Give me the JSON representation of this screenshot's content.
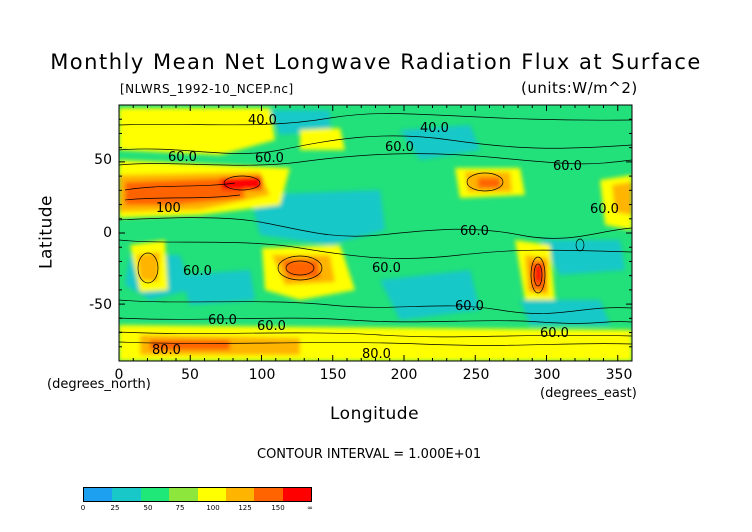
{
  "chart_data": {
    "type": "heatmap",
    "title": "Monthly Mean Net Longwave Radiation Flux at Surface",
    "subtitle": "[NLWRS_1992-10_NCEP.nc]",
    "units": "(units:W/m^2)",
    "xlabel": "Longitude",
    "ylabel": "Latitude",
    "x_unit_label": "(degrees_east)",
    "y_unit_label": "(degrees_north)",
    "xlim": [
      0,
      360
    ],
    "ylim": [
      -90,
      90
    ],
    "x_ticks": [
      "0",
      "50",
      "100",
      "150",
      "200",
      "250",
      "300",
      "350"
    ],
    "y_ticks": [
      "50",
      "0",
      "-50"
    ],
    "contour_labels": [
      "40.0",
      "40.0",
      "60.0",
      "60.0",
      "60.0",
      "60.0",
      "60.0",
      "60.0",
      "60.0",
      "60.0",
      "60.0",
      "60.0",
      "60.0",
      "60.0",
      "80.0",
      "80.0",
      "100"
    ],
    "contour_interval": "CONTOUR INTERVAL = 1.000E+01",
    "colorbar": {
      "labels": [
        "0",
        "25",
        "50",
        "75",
        "100",
        "125",
        "150",
        "∞"
      ],
      "colors": [
        "#1ea0f0",
        "#18c8c8",
        "#20e878",
        "#8ce63c",
        "#ffff00",
        "#ffb400",
        "#ff6400",
        "#ff0000"
      ]
    },
    "background_color": "#22e07a",
    "regions": [
      {
        "lon": 5,
        "lat": 30,
        "value": 125
      },
      {
        "lon": 45,
        "lat": 33,
        "value": 125
      },
      {
        "lon": 85,
        "lat": 36,
        "value": 140
      },
      {
        "lon": 20,
        "lat": -28,
        "value": 125
      },
      {
        "lon": 125,
        "lat": -25,
        "value": 125
      },
      {
        "lon": 295,
        "lat": -30,
        "value": 150
      },
      {
        "lon": 258,
        "lat": 35,
        "value": 110
      },
      {
        "lon": 355,
        "lat": 20,
        "value": 110
      },
      {
        "lon": 60,
        "lat": 75,
        "value": 100
      },
      {
        "lon": 180,
        "lat": 10,
        "value": 40
      },
      {
        "lon": 220,
        "lat": -40,
        "value": 45
      }
    ]
  }
}
